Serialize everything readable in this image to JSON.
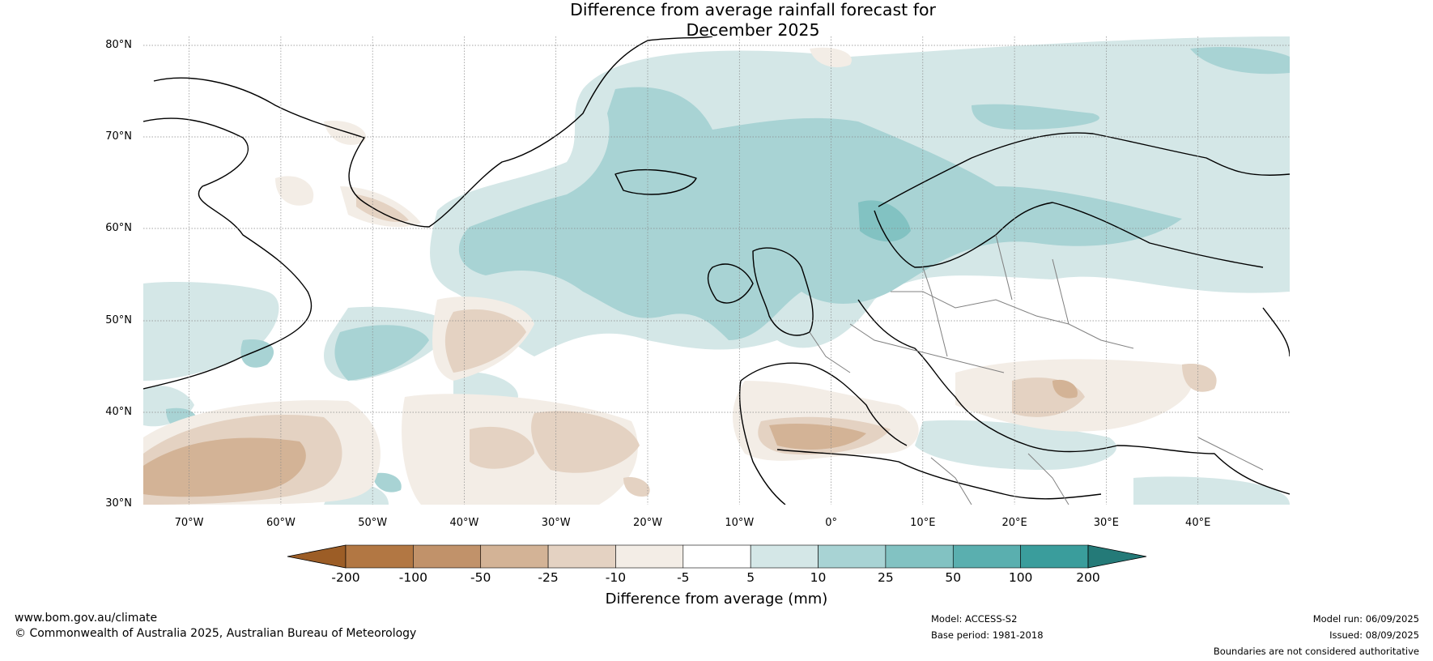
{
  "title": {
    "line1": "Difference from average rainfall forecast for",
    "line2": "December 2025"
  },
  "map": {
    "lon_range": [
      -75,
      50
    ],
    "lat_range": [
      30,
      81
    ],
    "lat_labels": [
      "80°N",
      "70°N",
      "60°N",
      "50°N",
      "40°N",
      "30°N"
    ],
    "lon_labels": [
      "70°W",
      "60°W",
      "50°W",
      "40°W",
      "30°W",
      "20°W",
      "10°W",
      "0°",
      "10°E",
      "20°E",
      "30°E",
      "40°E"
    ],
    "gridlines": true,
    "coastline_color": "#000000",
    "boundary_color": "#808080"
  },
  "colorbar": {
    "ticks": [
      "-200",
      "-100",
      "-50",
      "-25",
      "-10",
      "-5",
      "5",
      "10",
      "25",
      "50",
      "100",
      "200"
    ],
    "colors": [
      "#9c5d26",
      "#b27743",
      "#c1926a",
      "#d3b396",
      "#e4d2c2",
      "#f3ede6",
      "#ffffff",
      "#d4e7e7",
      "#a8d3d4",
      "#82c2c2",
      "#5aafaf",
      "#3a9d9c",
      "#247a78"
    ],
    "label": "Difference from average (mm)",
    "extend": "both"
  },
  "footer": {
    "website": "www.bom.gov.au/climate",
    "copyright": "© Commonwealth of Australia 2025, Australian Bureau of Meteorology",
    "model": "Model: ACCESS-S2",
    "base_period": "Base period: 1981-2018",
    "model_run": "Model run: 06/09/2025",
    "issued": "Issued: 08/09/2025",
    "disclaimer": "Boundaries are not considered authoritative"
  }
}
